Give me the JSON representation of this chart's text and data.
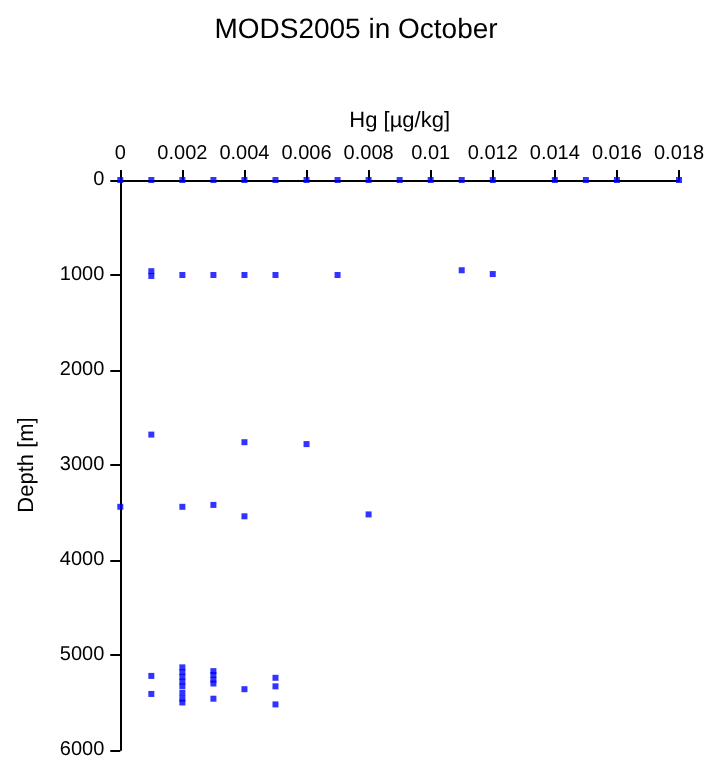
{
  "chart_data": {
    "type": "scatter",
    "title": "MODS2005 in October",
    "xlabel": "Hg [µg/kg]",
    "ylabel": "Depth [m]",
    "x": [
      0,
      0.001,
      0.002,
      0.003,
      0.004,
      0.005,
      0.006,
      0.007,
      0.008,
      0.009,
      0.01,
      0.011,
      0.012,
      0.014,
      0.015,
      0.016,
      0.018,
      0.001,
      0.001,
      0.002,
      0.003,
      0.004,
      0.005,
      0.007,
      0.011,
      0.012,
      0,
      0.001,
      0.002,
      0.003,
      0.004,
      0.004,
      0.006,
      0.008,
      0.001,
      0.001,
      0.002,
      0.002,
      0.002,
      0.002,
      0.002,
      0.002,
      0.002,
      0.002,
      0.003,
      0.003,
      0.003,
      0.003,
      0.003,
      0.004,
      0.005,
      0.005,
      0.005
    ],
    "values": [
      0,
      0,
      0,
      0,
      0,
      0,
      0,
      0,
      0,
      0,
      0,
      0,
      0,
      0,
      0,
      0,
      0,
      960,
      1010,
      1000,
      1000,
      1000,
      1000,
      1000,
      950,
      990,
      3440,
      2680,
      3440,
      3420,
      2760,
      3540,
      2780,
      3520,
      5220,
      5410,
      5130,
      5180,
      5230,
      5280,
      5330,
      5400,
      5460,
      5500,
      5170,
      5210,
      5260,
      5300,
      5460,
      5360,
      5240,
      5330,
      5520
    ],
    "color": "#0000ff",
    "marker": "square",
    "xlim": [
      0,
      0.018
    ],
    "xticks": [
      0,
      0.002,
      0.004,
      0.006,
      0.008,
      0.01,
      0.012,
      0.014,
      0.016,
      0.018
    ],
    "ylim": [
      6000,
      0
    ],
    "yticks": [
      0,
      1000,
      2000,
      3000,
      4000,
      5000,
      6000
    ],
    "grid": false
  }
}
